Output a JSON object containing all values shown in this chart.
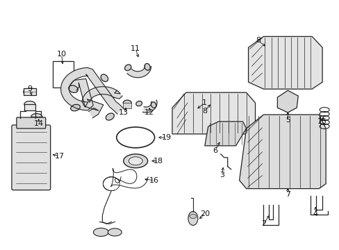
{
  "bg_color": "#ffffff",
  "line_color": "#222222",
  "text_color": "#111111",
  "fig_width": 4.89,
  "fig_height": 3.6,
  "dpi": 100
}
